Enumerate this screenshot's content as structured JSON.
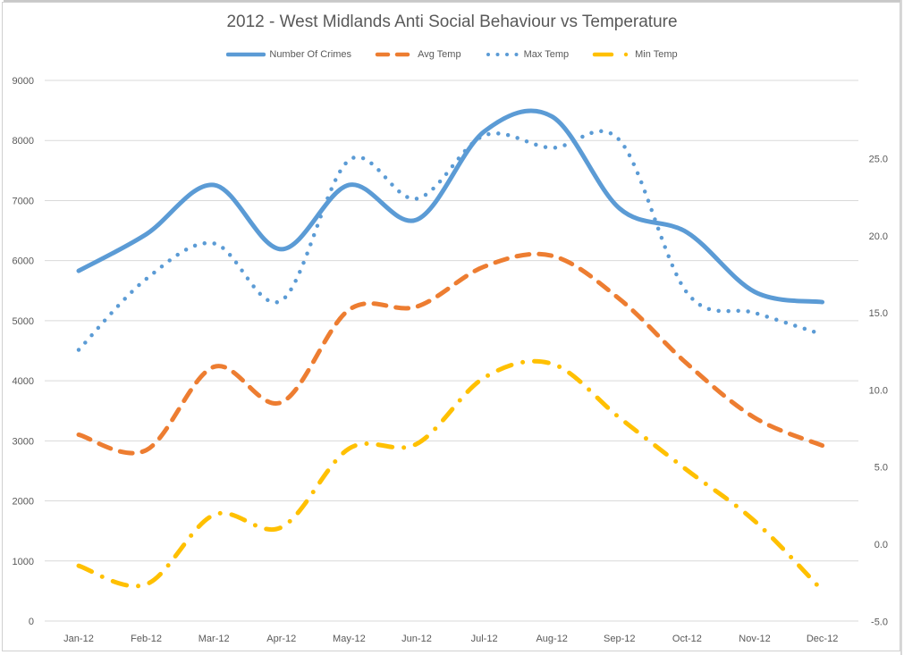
{
  "chart_data": {
    "type": "line",
    "title": "2012 - West Midlands Anti Social Behaviour vs Temperature",
    "categories": [
      "Jan-12",
      "Feb-12",
      "Mar-12",
      "Apr-12",
      "May-12",
      "Jun-12",
      "Jul-12",
      "Aug-12",
      "Sep-12",
      "Oct-12",
      "Nov-12",
      "Dec-12"
    ],
    "y_left": {
      "ylim": [
        0,
        9000
      ],
      "ticks": [
        "0",
        "1000",
        "2000",
        "3000",
        "4000",
        "5000",
        "6000",
        "7000",
        "8000",
        "9000"
      ],
      "tick_values": [
        0,
        1000,
        2000,
        3000,
        4000,
        5000,
        6000,
        7000,
        8000,
        9000
      ]
    },
    "y_right": {
      "ylim": [
        -5,
        30
      ],
      "ticks": [
        "-5.0",
        "0.0",
        "5.0",
        "10.0",
        "15.0",
        "20.0",
        "25.0"
      ],
      "tick_values": [
        -5,
        0,
        5,
        10,
        15,
        20,
        25
      ]
    },
    "grid": true,
    "legend_position": "top",
    "series": [
      {
        "name": "Number Of Crimes",
        "axis": "left",
        "style": "solid",
        "color": "#5b9bd5",
        "values": [
          5830,
          6440,
          7260,
          6190,
          7260,
          6680,
          8150,
          8400,
          6870,
          6470,
          5480,
          5310
        ]
      },
      {
        "name": "Avg Temp",
        "axis": "right",
        "style": "dash",
        "color": "#ed7d31",
        "values": [
          7.1,
          6.1,
          11.5,
          9.2,
          15.2,
          15.4,
          18.0,
          18.7,
          15.9,
          11.7,
          8.2,
          6.4
        ]
      },
      {
        "name": "Max Temp",
        "axis": "right",
        "style": "dot",
        "color": "#5b9bd5",
        "values": [
          12.6,
          17.2,
          19.5,
          15.8,
          24.9,
          22.4,
          26.5,
          25.7,
          26.2,
          16.3,
          15.0,
          13.6
        ]
      },
      {
        "name": "Min Temp",
        "axis": "right",
        "style": "dashdot",
        "color": "#ffc000",
        "values": [
          -1.4,
          -2.6,
          1.9,
          1.1,
          6.2,
          6.5,
          10.8,
          11.7,
          8.2,
          4.8,
          1.5,
          -3.0
        ]
      }
    ]
  }
}
